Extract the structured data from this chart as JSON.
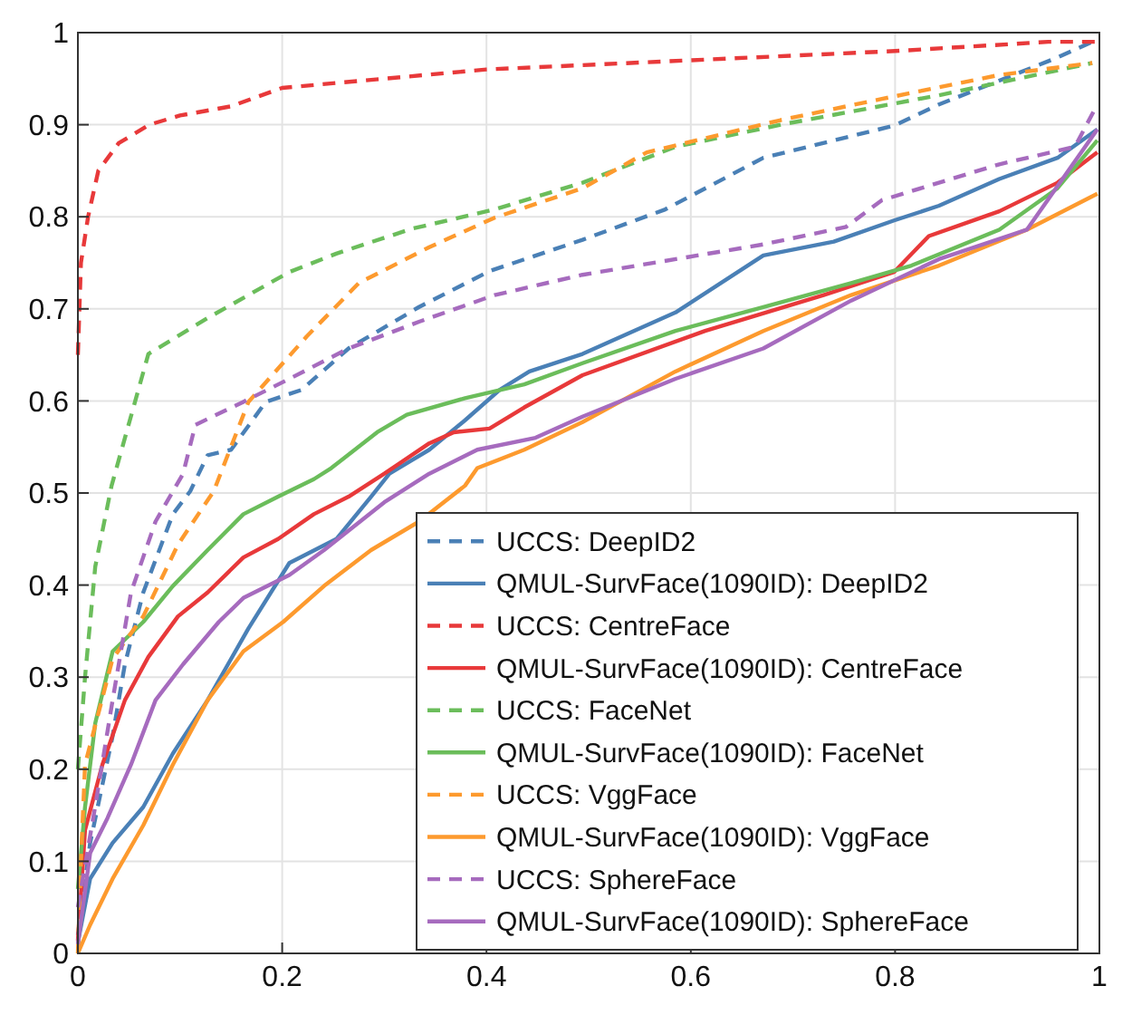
{
  "chart_data": {
    "type": "line",
    "xlim": [
      0,
      1
    ],
    "ylim": [
      0,
      1
    ],
    "xticks": [
      0,
      0.2,
      0.4,
      0.6,
      0.8,
      1
    ],
    "yticks": [
      0,
      0.1,
      0.2,
      0.3,
      0.4,
      0.5,
      0.6,
      0.7,
      0.8,
      0.9,
      1
    ],
    "grid": true,
    "legend": "bottom right",
    "series": [
      {
        "name": "UCCS: DeepID2",
        "color": "#4a80b6",
        "line_style": "dashed",
        "x": [
          0,
          0.012,
          0.034,
          0.046,
          0.064,
          0.093,
          0.11,
          0.127,
          0.15,
          0.184,
          0.219,
          0.265,
          0.334,
          0.403,
          0.494,
          0.575,
          0.671,
          0.799,
          0.843,
          0.959,
          0.997
        ],
        "values": [
          0.02,
          0.12,
          0.236,
          0.314,
          0.392,
          0.477,
          0.502,
          0.541,
          0.547,
          0.599,
          0.612,
          0.657,
          0.702,
          0.741,
          0.775,
          0.808,
          0.864,
          0.899,
          0.922,
          0.973,
          0.992
        ]
      },
      {
        "name": "QMUL-SurvFace(1090ID): DeepID2",
        "color": "#4a80b6",
        "line_style": "solid",
        "x": [
          0,
          0.012,
          0.034,
          0.064,
          0.093,
          0.127,
          0.167,
          0.207,
          0.253,
          0.287,
          0.305,
          0.344,
          0.379,
          0.413,
          0.442,
          0.494,
          0.585,
          0.671,
          0.74,
          0.799,
          0.843,
          0.902,
          0.959,
          0.998
        ],
        "values": [
          0.012,
          0.081,
          0.12,
          0.159,
          0.217,
          0.275,
          0.353,
          0.424,
          0.45,
          0.496,
          0.521,
          0.547,
          0.579,
          0.612,
          0.632,
          0.651,
          0.696,
          0.758,
          0.773,
          0.796,
          0.812,
          0.841,
          0.864,
          0.895
        ]
      },
      {
        "name": "UCCS: CentreFace",
        "color": "#e8393a",
        "line_style": "dashed",
        "x": [
          0,
          0.003,
          0.01,
          0.02,
          0.04,
          0.07,
          0.1,
          0.15,
          0.2,
          0.3,
          0.4,
          0.6,
          0.8,
          0.95,
          1
        ],
        "values": [
          0.65,
          0.75,
          0.8,
          0.85,
          0.88,
          0.9,
          0.91,
          0.92,
          0.94,
          0.95,
          0.96,
          0.97,
          0.98,
          0.99,
          0.99
        ]
      },
      {
        "name": "QMUL-SurvFace(1090ID): CentreFace",
        "color": "#e8393a",
        "line_style": "solid",
        "x": [
          0,
          0.007,
          0.024,
          0.046,
          0.069,
          0.098,
          0.127,
          0.162,
          0.196,
          0.231,
          0.265,
          0.3,
          0.344,
          0.368,
          0.403,
          0.437,
          0.494,
          0.614,
          0.73,
          0.799,
          0.833,
          0.902,
          0.959,
          0.998
        ],
        "values": [
          0.014,
          0.134,
          0.205,
          0.275,
          0.322,
          0.366,
          0.392,
          0.43,
          0.45,
          0.477,
          0.496,
          0.521,
          0.554,
          0.566,
          0.57,
          0.593,
          0.628,
          0.676,
          0.715,
          0.74,
          0.779,
          0.806,
          0.837,
          0.87
        ]
      },
      {
        "name": "UCCS: FaceNet",
        "color": "#6bbd5b",
        "line_style": "dashed",
        "x": [
          0,
          0.007,
          0.017,
          0.033,
          0.069,
          0.127,
          0.207,
          0.253,
          0.327,
          0.408,
          0.494,
          0.585,
          0.688,
          0.843,
          0.993
        ],
        "values": [
          0.2,
          0.3,
          0.42,
          0.508,
          0.651,
          0.69,
          0.74,
          0.76,
          0.787,
          0.808,
          0.837,
          0.876,
          0.9,
          0.932,
          0.967
        ]
      },
      {
        "name": "QMUL-SurvFace(1090ID): FaceNet",
        "color": "#6bbd5b",
        "line_style": "solid",
        "x": [
          0,
          0.007,
          0.017,
          0.034,
          0.064,
          0.093,
          0.127,
          0.162,
          0.196,
          0.231,
          0.248,
          0.293,
          0.322,
          0.379,
          0.437,
          0.494,
          0.585,
          0.671,
          0.757,
          0.816,
          0.902,
          0.959,
          0.998
        ],
        "values": [
          0.07,
          0.159,
          0.25,
          0.328,
          0.36,
          0.399,
          0.438,
          0.477,
          0.496,
          0.515,
          0.527,
          0.566,
          0.585,
          0.603,
          0.618,
          0.641,
          0.676,
          0.702,
          0.728,
          0.747,
          0.786,
          0.831,
          0.883
        ]
      },
      {
        "name": "UCCS: VggFace",
        "color": "#fd9a2e",
        "line_style": "dashed",
        "x": [
          0,
          0.003,
          0.007,
          0.034,
          0.064,
          0.098,
          0.133,
          0.167,
          0.224,
          0.275,
          0.344,
          0.408,
          0.494,
          0.557,
          0.688,
          0.787,
          0.902,
          0.993
        ],
        "values": [
          0,
          0.1,
          0.205,
          0.32,
          0.366,
          0.444,
          0.502,
          0.599,
          0.67,
          0.728,
          0.767,
          0.799,
          0.831,
          0.87,
          0.905,
          0.928,
          0.954,
          0.967
        ]
      },
      {
        "name": "QMUL-SurvFace(1090ID): VggFace",
        "color": "#fd9a2e",
        "line_style": "solid",
        "x": [
          0,
          0.012,
          0.034,
          0.064,
          0.093,
          0.127,
          0.162,
          0.201,
          0.241,
          0.287,
          0.334,
          0.379,
          0.391,
          0.437,
          0.494,
          0.585,
          0.671,
          0.757,
          0.843,
          0.929,
          0.998
        ],
        "values": [
          0,
          0.031,
          0.081,
          0.139,
          0.205,
          0.275,
          0.328,
          0.36,
          0.399,
          0.438,
          0.469,
          0.508,
          0.527,
          0.547,
          0.577,
          0.632,
          0.676,
          0.715,
          0.747,
          0.786,
          0.825
        ]
      },
      {
        "name": "UCCS: SphereFace",
        "color": "#a66bbe",
        "line_style": "dashed",
        "x": [
          0,
          0.017,
          0.034,
          0.052,
          0.076,
          0.103,
          0.115,
          0.162,
          0.207,
          0.265,
          0.334,
          0.408,
          0.494,
          0.671,
          0.752,
          0.787,
          0.902,
          0.976,
          0.998
        ],
        "values": [
          0.05,
          0.16,
          0.275,
          0.392,
          0.469,
          0.521,
          0.574,
          0.599,
          0.624,
          0.657,
          0.686,
          0.715,
          0.737,
          0.77,
          0.789,
          0.818,
          0.857,
          0.876,
          0.922
        ]
      },
      {
        "name": "QMUL-SurvFace(1090ID): SphereFace",
        "color": "#a66bbe",
        "line_style": "solid",
        "x": [
          0,
          0.012,
          0.029,
          0.052,
          0.076,
          0.103,
          0.138,
          0.162,
          0.207,
          0.241,
          0.3,
          0.344,
          0.391,
          0.448,
          0.494,
          0.585,
          0.671,
          0.757,
          0.843,
          0.929,
          0.998
        ],
        "values": [
          0.01,
          0.109,
          0.147,
          0.205,
          0.275,
          0.314,
          0.36,
          0.386,
          0.411,
          0.438,
          0.49,
          0.521,
          0.547,
          0.56,
          0.583,
          0.624,
          0.657,
          0.709,
          0.754,
          0.786,
          0.895
        ]
      }
    ]
  }
}
